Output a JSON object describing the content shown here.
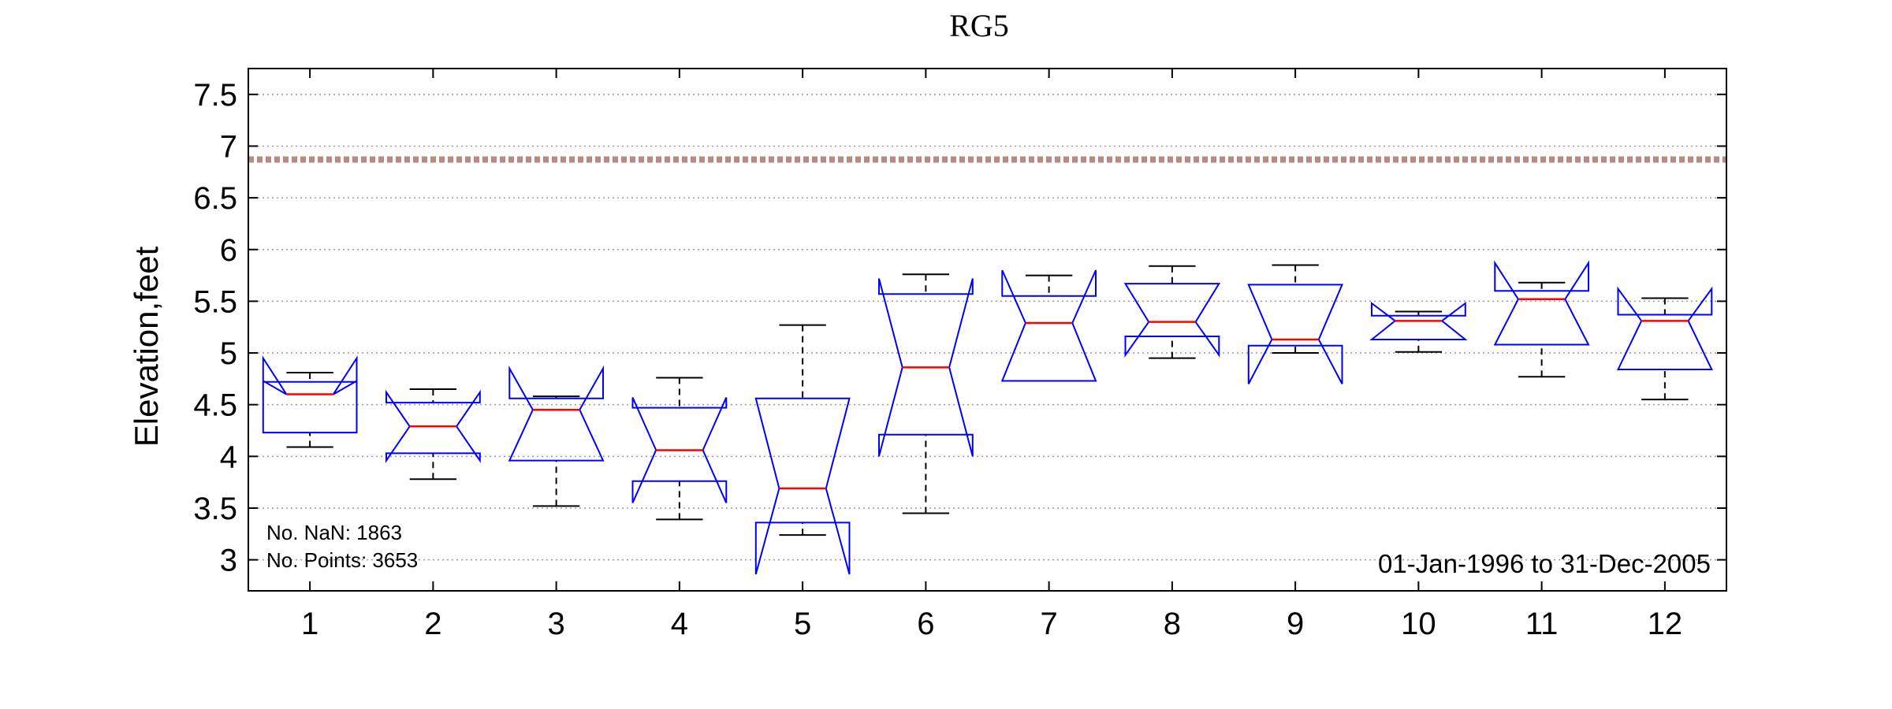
{
  "chart_data": {
    "type": "boxplot",
    "title": "RG5",
    "ylabel": "Elevation,feet",
    "xlabel": "",
    "ylim": [
      2.7,
      7.75
    ],
    "yticks": [
      "3",
      "3.5",
      "4",
      "4.5",
      "5",
      "5.5",
      "6",
      "6.5",
      "7",
      "7.5"
    ],
    "categories": [
      "1",
      "2",
      "3",
      "4",
      "5",
      "6",
      "7",
      "8",
      "9",
      "10",
      "11",
      "12"
    ],
    "grid": "horizontal dotted",
    "reference_line": {
      "value": 6.87,
      "style": "dashed",
      "color": "#b88a82"
    },
    "box_color": "#0000ff",
    "median_color": "#ff0000",
    "whisker_color": "#000000",
    "boxes": [
      {
        "category": "1",
        "whisker_low": 4.09,
        "q1": 4.23,
        "median": 4.6,
        "q3": 4.72,
        "whisker_high": 4.81,
        "notch_low": 4.73,
        "notch_high": 4.95
      },
      {
        "category": "2",
        "whisker_low": 3.78,
        "q1": 4.03,
        "median": 4.29,
        "q3": 4.52,
        "whisker_high": 4.65,
        "notch_low": 3.96,
        "notch_high": 4.62
      },
      {
        "category": "3",
        "whisker_low": 3.52,
        "q1": 3.96,
        "median": 4.45,
        "q3": 4.56,
        "whisker_high": 4.58,
        "notch_low": 3.96,
        "notch_high": 4.85
      },
      {
        "category": "4",
        "whisker_low": 3.39,
        "q1": 3.76,
        "median": 4.06,
        "q3": 4.47,
        "whisker_high": 4.76,
        "notch_low": 3.55,
        "notch_high": 4.57
      },
      {
        "category": "5",
        "whisker_low": 3.24,
        "q1": 3.36,
        "median": 3.69,
        "q3": 4.56,
        "whisker_high": 5.27,
        "notch_low": 2.86,
        "notch_high": 4.56
      },
      {
        "category": "6",
        "whisker_low": 3.45,
        "q1": 4.21,
        "median": 4.86,
        "q3": 5.57,
        "whisker_high": 5.76,
        "notch_low": 4.0,
        "notch_high": 5.72
      },
      {
        "category": "7",
        "whisker_low": 4.73,
        "q1": 4.73,
        "median": 5.29,
        "q3": 5.55,
        "whisker_high": 5.75,
        "notch_low": 4.73,
        "notch_high": 5.8
      },
      {
        "category": "8",
        "whisker_low": 4.95,
        "q1": 5.16,
        "median": 5.3,
        "q3": 5.67,
        "whisker_high": 5.84,
        "notch_low": 4.98,
        "notch_high": 5.67
      },
      {
        "category": "9",
        "whisker_low": 5.0,
        "q1": 5.07,
        "median": 5.13,
        "q3": 5.66,
        "whisker_high": 5.85,
        "notch_low": 4.7,
        "notch_high": 5.66
      },
      {
        "category": "10",
        "whisker_low": 5.01,
        "q1": 5.13,
        "median": 5.31,
        "q3": 5.36,
        "whisker_high": 5.4,
        "notch_low": 5.13,
        "notch_high": 5.48
      },
      {
        "category": "11",
        "whisker_low": 4.77,
        "q1": 5.08,
        "median": 5.52,
        "q3": 5.6,
        "whisker_high": 5.68,
        "notch_low": 5.08,
        "notch_high": 5.87
      },
      {
        "category": "12",
        "whisker_low": 4.55,
        "q1": 4.84,
        "median": 5.31,
        "q3": 5.37,
        "whisker_high": 5.53,
        "notch_low": 4.84,
        "notch_high": 5.62
      }
    ],
    "annotations": {
      "nan_count": "No. NaN: 1863",
      "points_count": "No. Points: 3653",
      "date_range": "01-Jan-1996 to 31-Dec-2005"
    }
  }
}
